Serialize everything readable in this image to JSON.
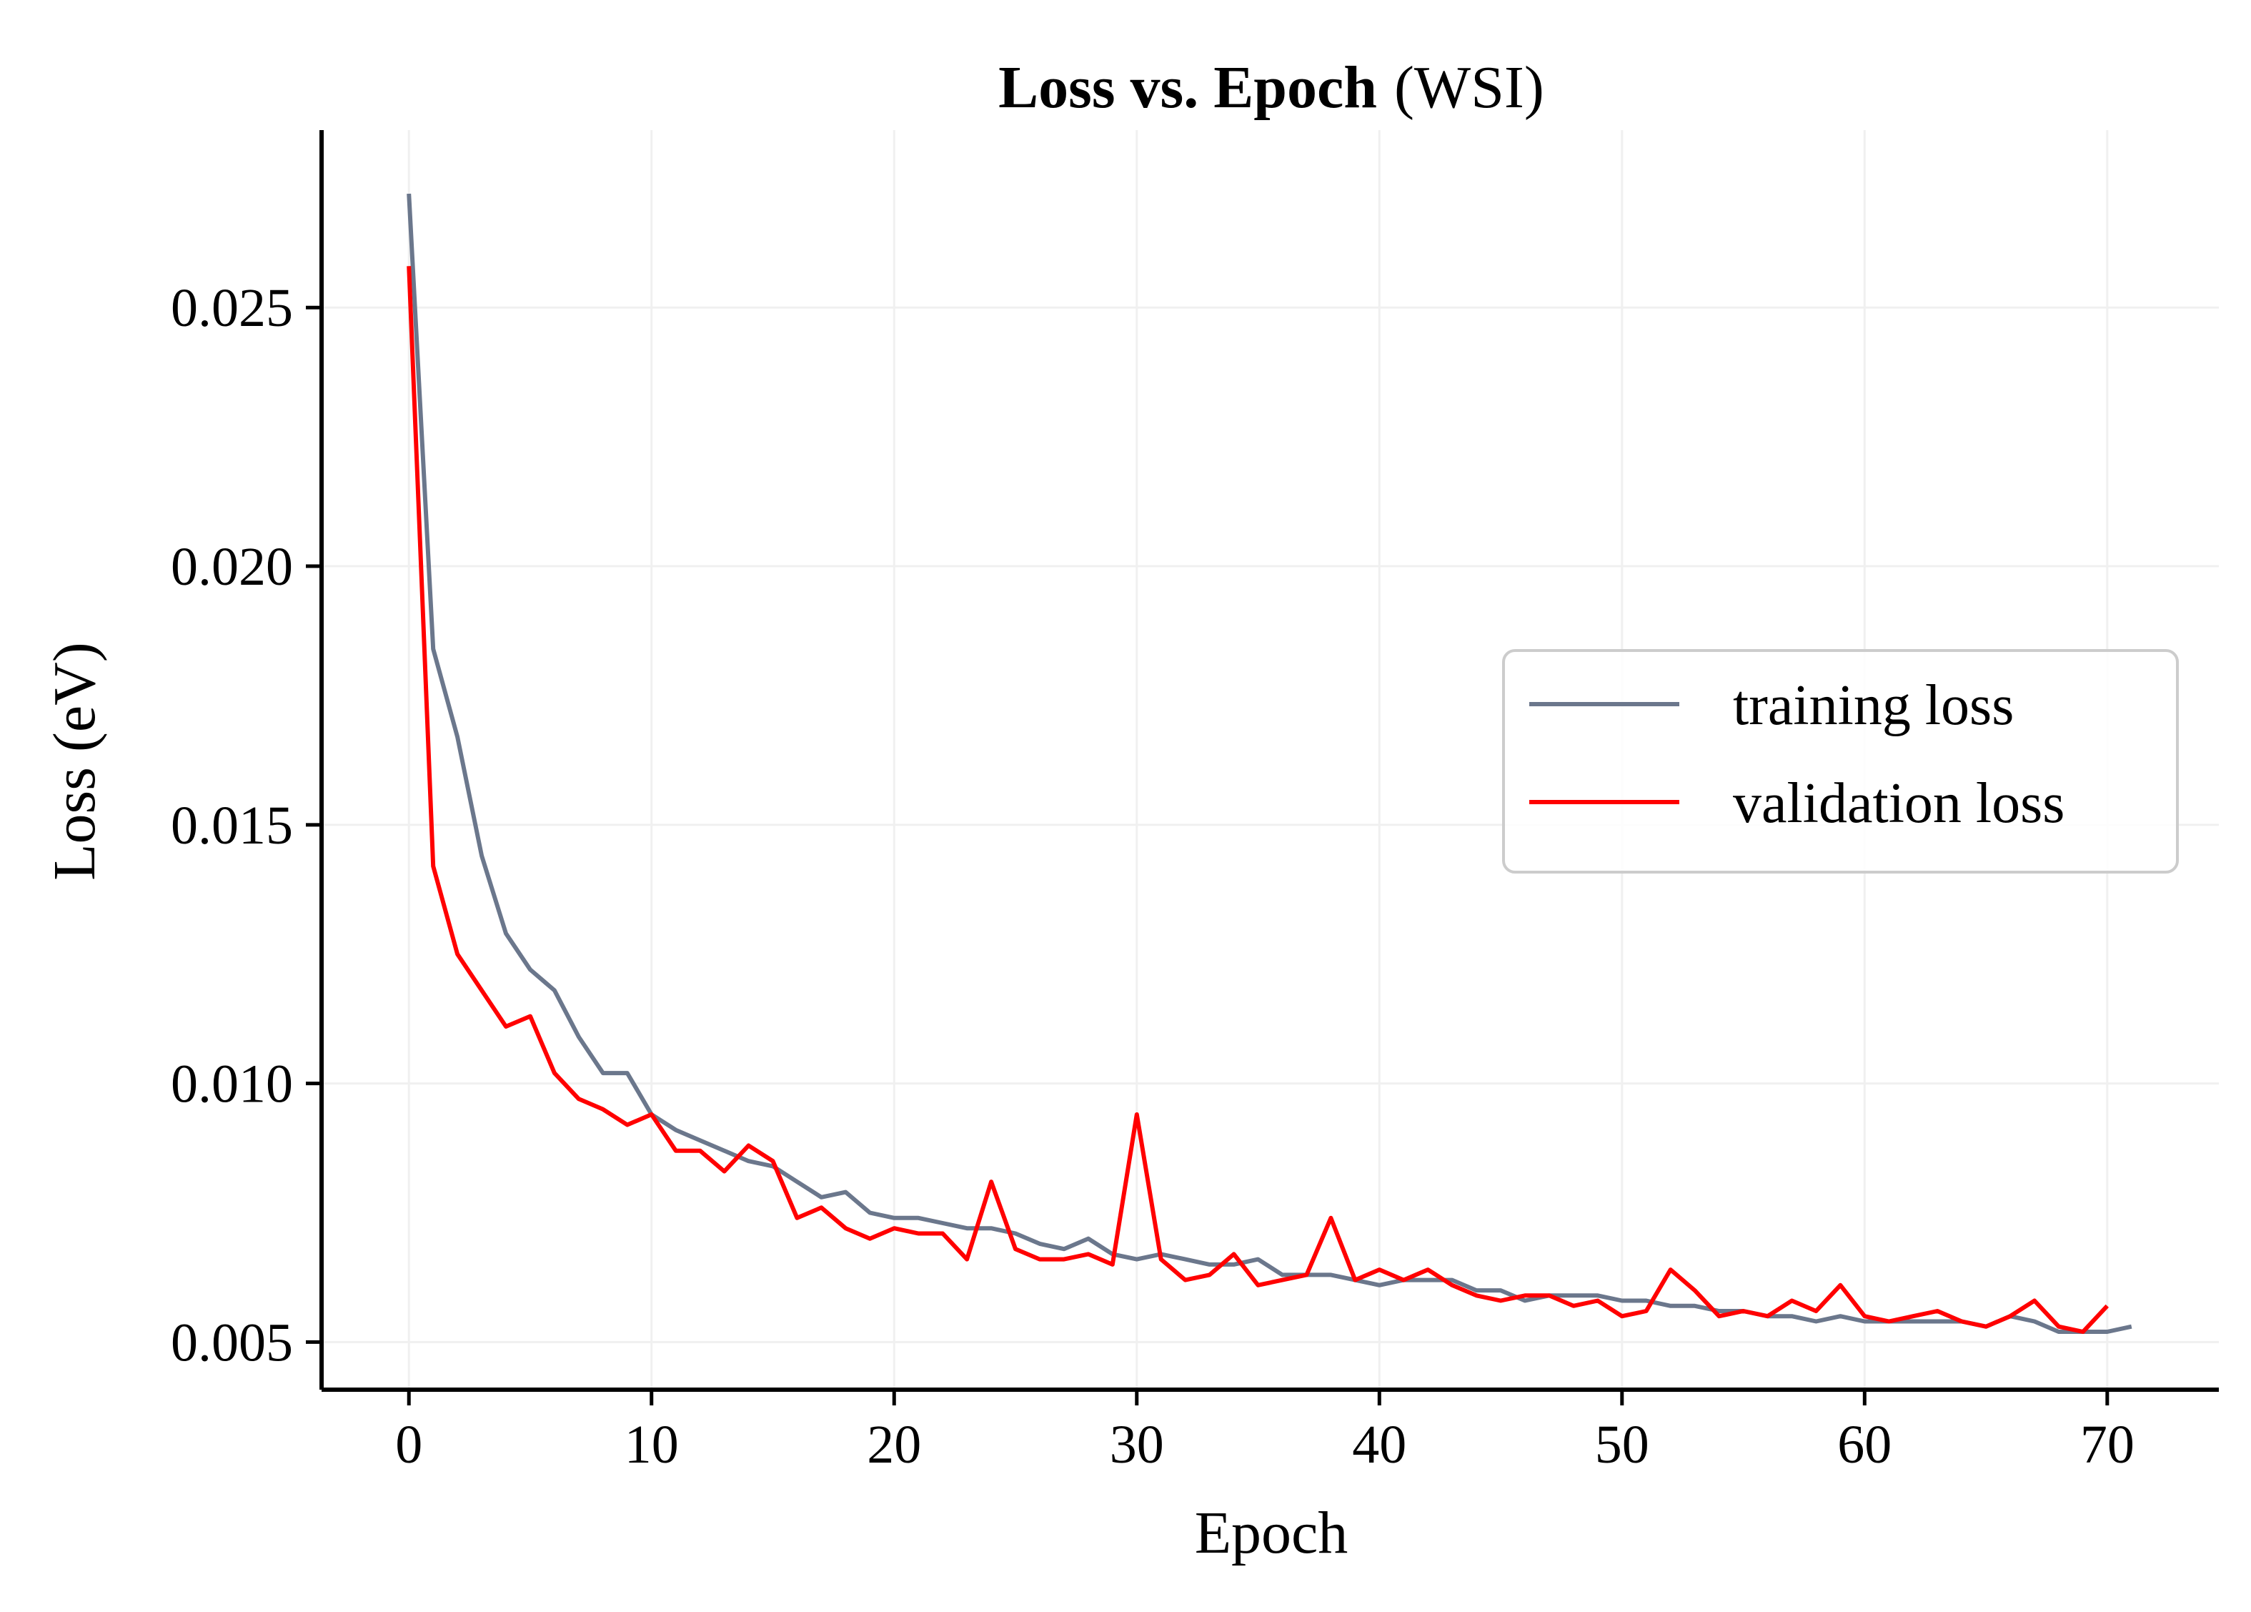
{
  "chart_data": {
    "type": "line",
    "title_bold": "Loss vs.  Epoch",
    "title_suffix": "(WSI)",
    "xlabel": "Epoch",
    "ylabel": "Loss (eV)",
    "xlim": [
      -3.6,
      74.6
    ],
    "ylim": [
      0.00408,
      0.02843
    ],
    "xticks": [
      0,
      10,
      20,
      30,
      40,
      50,
      60,
      70
    ],
    "xtick_labels": [
      "0",
      "10",
      "20",
      "30",
      "40",
      "50",
      "60",
      "70"
    ],
    "yticks": [
      0.005,
      0.01,
      0.015,
      0.02,
      0.025
    ],
    "ytick_labels": [
      "0.005",
      "0.010",
      "0.015",
      "0.020",
      "0.025"
    ],
    "grid": true,
    "legend_position": "center-right",
    "series": [
      {
        "name": "training loss",
        "color": "#6b778c",
        "x": [
          0,
          1,
          2,
          3,
          4,
          5,
          6,
          7,
          8,
          9,
          10,
          11,
          12,
          13,
          14,
          15,
          16,
          17,
          18,
          19,
          20,
          21,
          22,
          23,
          24,
          25,
          26,
          27,
          28,
          29,
          30,
          31,
          32,
          33,
          34,
          35,
          36,
          37,
          38,
          39,
          40,
          41,
          42,
          43,
          44,
          45,
          46,
          47,
          48,
          49,
          50,
          51,
          52,
          53,
          54,
          55,
          56,
          57,
          58,
          59,
          60,
          61,
          62,
          63,
          64,
          65,
          66,
          67,
          68,
          69,
          70,
          71
        ],
        "y": [
          0.0272,
          0.0184,
          0.0167,
          0.0144,
          0.0129,
          0.0122,
          0.0118,
          0.0109,
          0.0102,
          0.0102,
          0.0094,
          0.0091,
          0.0089,
          0.0087,
          0.0085,
          0.0084,
          0.0081,
          0.0078,
          0.0079,
          0.0075,
          0.0074,
          0.0074,
          0.0073,
          0.0072,
          0.0072,
          0.0071,
          0.0069,
          0.0068,
          0.007,
          0.0067,
          0.0066,
          0.0067,
          0.0066,
          0.0065,
          0.0065,
          0.0066,
          0.0063,
          0.0063,
          0.0063,
          0.0062,
          0.0061,
          0.0062,
          0.0062,
          0.0062,
          0.006,
          0.006,
          0.0058,
          0.0059,
          0.0059,
          0.0059,
          0.0058,
          0.0058,
          0.0057,
          0.0057,
          0.0056,
          0.0056,
          0.0055,
          0.0055,
          0.0054,
          0.0055,
          0.0054,
          0.0054,
          0.0054,
          0.0054,
          0.0054,
          0.0053,
          0.0055,
          0.0054,
          0.0052,
          0.0052,
          0.0052,
          0.0053
        ]
      },
      {
        "name": "validation loss",
        "color": "#ff0000",
        "x": [
          0,
          1,
          2,
          3,
          4,
          5,
          6,
          7,
          8,
          9,
          10,
          11,
          12,
          13,
          14,
          15,
          16,
          17,
          18,
          19,
          20,
          21,
          22,
          23,
          24,
          25,
          26,
          27,
          28,
          29,
          30,
          31,
          32,
          33,
          34,
          35,
          36,
          37,
          38,
          39,
          40,
          41,
          42,
          43,
          44,
          45,
          46,
          47,
          48,
          49,
          50,
          51,
          52,
          53,
          54,
          55,
          56,
          57,
          58,
          59,
          60,
          61,
          62,
          63,
          64,
          65,
          66,
          67,
          68,
          69,
          70
        ],
        "y": [
          0.0258,
          0.0142,
          0.0125,
          0.0118,
          0.0111,
          0.0113,
          0.0102,
          0.0097,
          0.0095,
          0.0092,
          0.0094,
          0.0087,
          0.0087,
          0.0083,
          0.0088,
          0.0085,
          0.0074,
          0.0076,
          0.0072,
          0.007,
          0.0072,
          0.0071,
          0.0071,
          0.0066,
          0.0081,
          0.0068,
          0.0066,
          0.0066,
          0.0067,
          0.0065,
          0.0094,
          0.0066,
          0.0062,
          0.0063,
          0.0067,
          0.0061,
          0.0062,
          0.0063,
          0.0074,
          0.0062,
          0.0064,
          0.0062,
          0.0064,
          0.0061,
          0.0059,
          0.0058,
          0.0059,
          0.0059,
          0.0057,
          0.0058,
          0.0055,
          0.0056,
          0.0064,
          0.006,
          0.0055,
          0.0056,
          0.0055,
          0.0058,
          0.0056,
          0.0061,
          0.0055,
          0.0054,
          0.0055,
          0.0056,
          0.0054,
          0.0053,
          0.0055,
          0.0058,
          0.0053,
          0.0052,
          0.0057
        ]
      }
    ]
  }
}
